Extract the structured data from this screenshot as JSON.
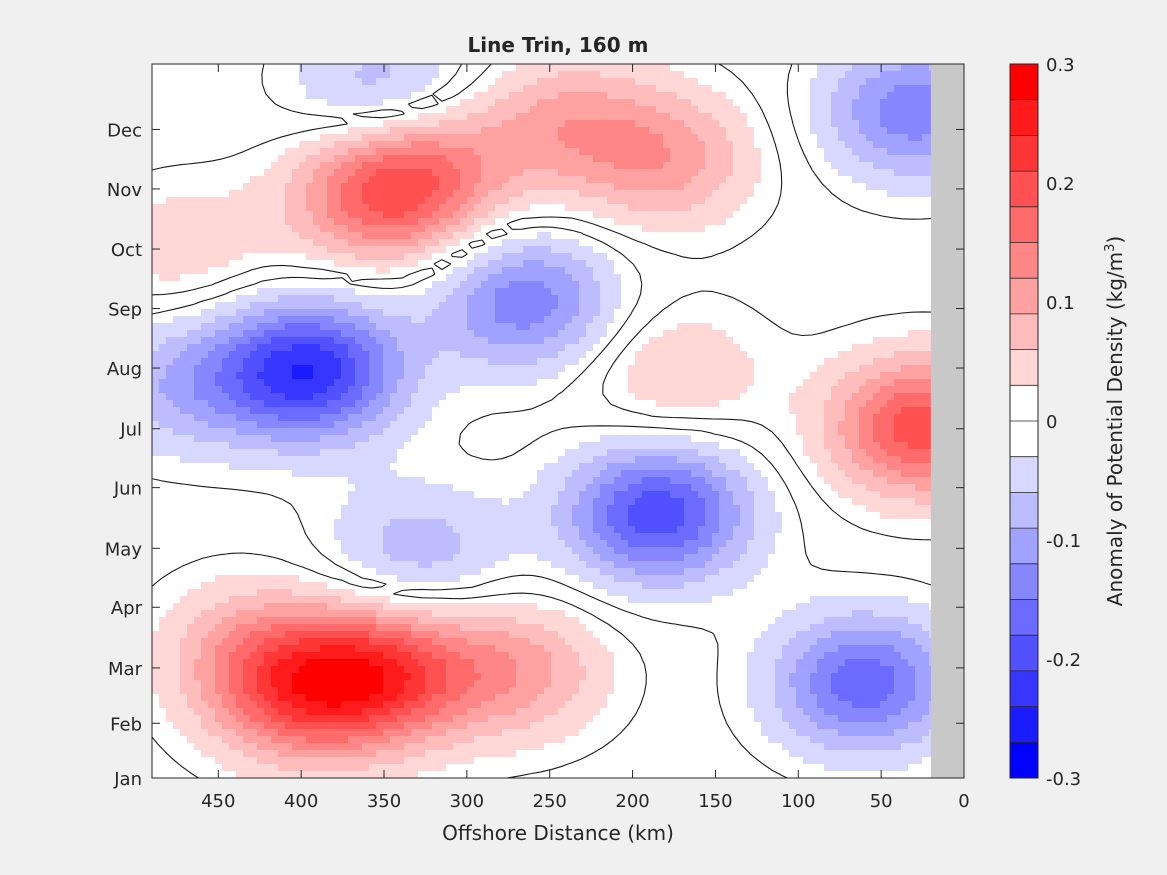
{
  "chart_data": {
    "type": "heatmap",
    "title": "Line Trin, 160 m",
    "xlabel": "Offshore Distance (km)",
    "colorbar_label": "Anomaly of Potential Density (kg/m",
    "colorbar_label_sup": "3",
    "colorbar_label_close": ")",
    "xlim": [
      490,
      0
    ],
    "x_reversed": true,
    "ylim": [
      0,
      12
    ],
    "x_ticks": [
      450,
      400,
      350,
      300,
      250,
      200,
      150,
      100,
      50,
      0
    ],
    "y_ticks": [
      {
        "value": 0,
        "label": "Jan"
      },
      {
        "value": 0.92,
        "label": "Feb"
      },
      {
        "value": 1.85,
        "label": "Mar"
      },
      {
        "value": 2.87,
        "label": "Apr"
      },
      {
        "value": 3.86,
        "label": "May"
      },
      {
        "value": 4.88,
        "label": "Jun"
      },
      {
        "value": 5.87,
        "label": "Jul"
      },
      {
        "value": 6.89,
        "label": "Aug"
      },
      {
        "value": 7.89,
        "label": "Sep"
      },
      {
        "value": 8.89,
        "label": "Oct"
      },
      {
        "value": 9.9,
        "label": "Nov"
      },
      {
        "value": 10.9,
        "label": "Dec"
      }
    ],
    "colorbar": {
      "range": [
        -0.3,
        0.3
      ],
      "ticks": [
        "0.3",
        "0.2",
        "0.1",
        "0",
        "-0.1",
        "-0.2",
        "-0.3"
      ],
      "levels": 20
    },
    "no_data_region_x": [
      20,
      0
    ],
    "contour_line_at": 0,
    "colors": {
      "positive": "#ff0000",
      "negative": "#0000ff",
      "zero": "#ffffff",
      "missing": "#c8c8c8"
    },
    "anomaly_centers": [
      {
        "x": 395,
        "y": 6.85,
        "value": -0.23
      },
      {
        "x": 185,
        "y": 4.45,
        "value": -0.2
      },
      {
        "x": 60,
        "y": 1.6,
        "value": -0.17
      },
      {
        "x": 30,
        "y": 11.2,
        "value": -0.14
      },
      {
        "x": 265,
        "y": 8.0,
        "value": -0.14
      },
      {
        "x": 350,
        "y": 11.5,
        "value": -0.09
      },
      {
        "x": 330,
        "y": 3.8,
        "value": -0.08
      },
      {
        "x": 470,
        "y": 6.6,
        "value": -0.08
      },
      {
        "x": 25,
        "y": 5.9,
        "value": 0.2
      },
      {
        "x": 350,
        "y": 9.8,
        "value": 0.17
      },
      {
        "x": 350,
        "y": 1.75,
        "value": 0.19
      },
      {
        "x": 400,
        "y": 1.4,
        "value": 0.16
      },
      {
        "x": 270,
        "y": 1.8,
        "value": 0.1
      },
      {
        "x": 180,
        "y": 10.4,
        "value": 0.1
      },
      {
        "x": 240,
        "y": 11.0,
        "value": 0.09
      },
      {
        "x": 175,
        "y": 6.8,
        "value": 0.06
      },
      {
        "x": 470,
        "y": 8.9,
        "value": 0.05
      },
      {
        "x": 430,
        "y": 2.2,
        "value": 0.08
      },
      {
        "x": 320,
        "y": 10.4,
        "value": 0.08
      }
    ]
  }
}
